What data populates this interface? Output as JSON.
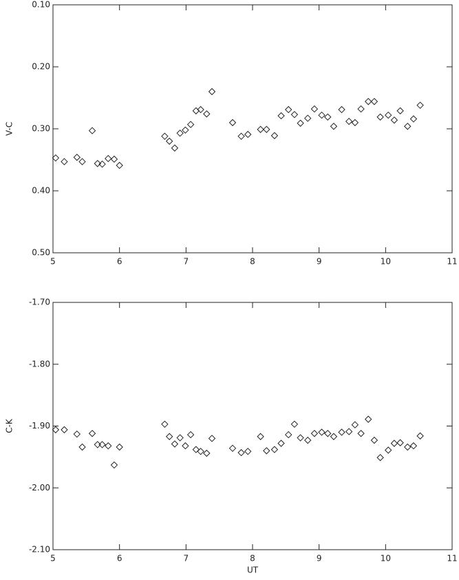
{
  "chart_data": [
    {
      "type": "scatter",
      "ylabel": "V-C",
      "color": "#222222",
      "marker": "diamond",
      "x": [
        5.04,
        5.17,
        5.36,
        5.44,
        5.59,
        5.67,
        5.74,
        5.83,
        5.92,
        6.0,
        6.68,
        6.75,
        6.83,
        6.91,
        6.99,
        7.07,
        7.15,
        7.22,
        7.31,
        7.39,
        7.7,
        7.83,
        7.93,
        8.12,
        8.21,
        8.33,
        8.43,
        8.54,
        8.63,
        8.72,
        8.83,
        8.93,
        9.04,
        9.13,
        9.22,
        9.34,
        9.45,
        9.54,
        9.63,
        9.74,
        9.83,
        9.92,
        10.04,
        10.13,
        10.22,
        10.33,
        10.42,
        10.52
      ],
      "values": [
        0.347,
        0.353,
        0.346,
        0.353,
        0.303,
        0.356,
        0.357,
        0.348,
        0.349,
        0.359,
        0.312,
        0.32,
        0.331,
        0.307,
        0.302,
        0.293,
        0.271,
        0.269,
        0.276,
        0.24,
        0.29,
        0.312,
        0.309,
        0.301,
        0.301,
        0.311,
        0.279,
        0.269,
        0.277,
        0.291,
        0.283,
        0.268,
        0.278,
        0.281,
        0.296,
        0.269,
        0.288,
        0.29,
        0.268,
        0.256,
        0.256,
        0.281,
        0.278,
        0.286,
        0.271,
        0.296,
        0.284,
        0.262
      ],
      "xlim": [
        5,
        11
      ],
      "xticks": [
        5,
        6,
        7,
        8,
        9,
        10,
        11
      ],
      "ylim": [
        0.5,
        0.1
      ],
      "yticks": [
        {
          "value": 0.1,
          "label": "0.10"
        },
        {
          "value": 0.2,
          "label": "0.20"
        },
        {
          "value": 0.3,
          "label": "0.30"
        },
        {
          "value": 0.4,
          "label": "0.40"
        },
        {
          "value": 0.5,
          "label": "0.50"
        }
      ]
    },
    {
      "type": "scatter",
      "ylabel": "C-K",
      "xlabel": "UT",
      "color": "#222222",
      "marker": "diamond",
      "x": [
        5.04,
        5.17,
        5.36,
        5.44,
        5.59,
        5.67,
        5.74,
        5.83,
        5.92,
        6.0,
        6.68,
        6.75,
        6.83,
        6.91,
        6.99,
        7.07,
        7.15,
        7.22,
        7.31,
        7.39,
        7.7,
        7.83,
        7.93,
        8.12,
        8.21,
        8.33,
        8.43,
        8.54,
        8.63,
        8.72,
        8.83,
        8.93,
        9.04,
        9.13,
        9.22,
        9.34,
        9.45,
        9.54,
        9.63,
        9.74,
        9.83,
        9.92,
        10.04,
        10.13,
        10.22,
        10.33,
        10.42,
        10.52
      ],
      "values": [
        -1.906,
        -1.906,
        -1.913,
        -1.934,
        -1.912,
        -1.93,
        -1.93,
        -1.932,
        -1.963,
        -1.934,
        -1.897,
        -1.917,
        -1.929,
        -1.919,
        -1.932,
        -1.914,
        -1.938,
        -1.941,
        -1.944,
        -1.92,
        -1.936,
        -1.943,
        -1.941,
        -1.917,
        -1.94,
        -1.938,
        -1.928,
        -1.914,
        -1.897,
        -1.919,
        -1.923,
        -1.912,
        -1.91,
        -1.912,
        -1.917,
        -1.91,
        -1.909,
        -1.898,
        -1.912,
        -1.889,
        -1.923,
        -1.951,
        -1.939,
        -1.928,
        -1.927,
        -1.934,
        -1.932,
        -1.916
      ],
      "xlim": [
        5,
        11
      ],
      "xticks": [
        5,
        6,
        7,
        8,
        9,
        10,
        11
      ],
      "ylim": [
        -2.1,
        -1.7
      ],
      "yticks": [
        {
          "value": -1.7,
          "label": "-1.70"
        },
        {
          "value": -1.8,
          "label": "-1.80"
        },
        {
          "value": -1.9,
          "label": "-1.90"
        },
        {
          "value": -2.0,
          "label": "-2.00"
        },
        {
          "value": -2.1,
          "label": "-2.10"
        }
      ]
    }
  ]
}
